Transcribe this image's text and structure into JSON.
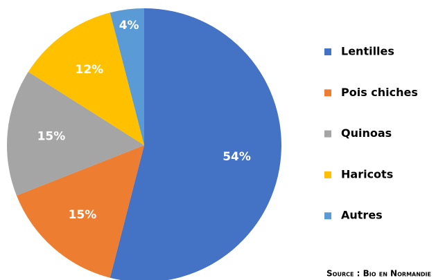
{
  "chart_data": {
    "type": "pie",
    "categories": [
      "Lentilles",
      "Pois chiches",
      "Quinoas",
      "Haricots",
      "Autres"
    ],
    "values": [
      54,
      15,
      15,
      12,
      4
    ],
    "value_labels": [
      "54%",
      "15%",
      "15%",
      "12%",
      "4%"
    ],
    "colors": [
      "#4472c4",
      "#ed7d31",
      "#a5a5a5",
      "#ffc000",
      "#5b9bd5"
    ],
    "legend": "right",
    "source": "Source : Bio en Normandie"
  }
}
